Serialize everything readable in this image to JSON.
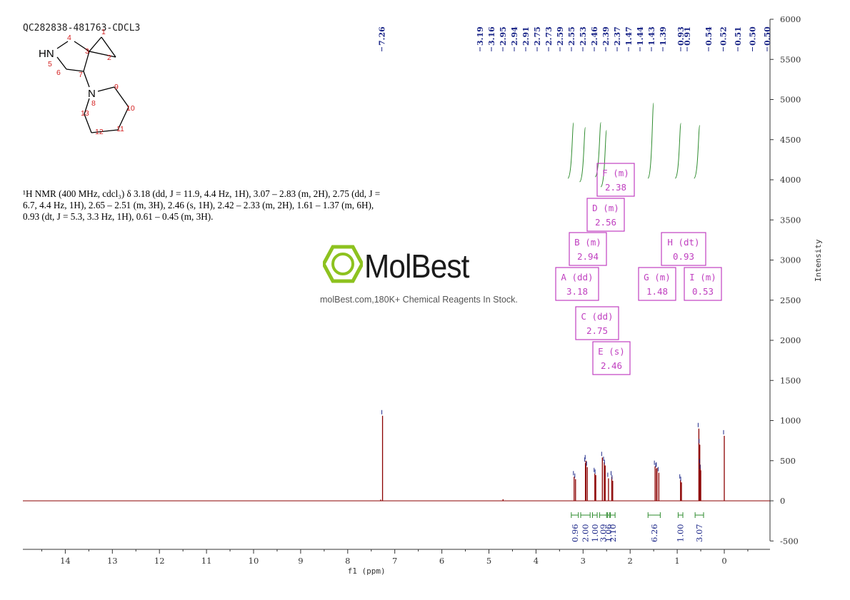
{
  "sample_id": "QC282838-481763-CDCL3",
  "molecule": {
    "atoms": [
      {
        "id": "1",
        "label": "1"
      },
      {
        "id": "2",
        "label": "2"
      },
      {
        "id": "3",
        "label": "3"
      },
      {
        "id": "4",
        "label": "4"
      },
      {
        "id": "5",
        "label": "5"
      },
      {
        "id": "6",
        "label": "6"
      },
      {
        "id": "7",
        "label": "7"
      },
      {
        "id": "8",
        "label": "8"
      },
      {
        "id": "9",
        "label": "9"
      },
      {
        "id": "10",
        "label": "10"
      },
      {
        "id": "11",
        "label": "11"
      },
      {
        "id": "12",
        "label": "12"
      },
      {
        "id": "13",
        "label": "13"
      }
    ],
    "hetero_labels": {
      "nh": "HN",
      "n": "N"
    }
  },
  "nmr_description": {
    "line1": "¹H NMR (400 MHz, cdcl₃) δ 3.18 (dd, J = 11.9, 4.4 Hz, 1H), 3.07 – 2.83 (m, 2H), 2.75 (dd, J =",
    "line2": "6.7, 4.4 Hz, 1H), 2.65 – 2.51 (m, 3H), 2.46 (s, 1H), 2.42 – 2.33 (m, 2H), 1.61 – 1.37 (m, 6H),",
    "line3": "0.93 (dt, J = 5.3, 3.3 Hz, 1H), 0.61 – 0.45 (m, 3H)."
  },
  "watermark": {
    "name": "MolBest",
    "tagline": "molBest.com,180K+ Chemical Reagents In Stock.",
    "accent": "#8dc21f"
  },
  "colors": {
    "spectrum": "#8b0000",
    "peak_labels": "#1f2a8a",
    "integrals": "#2e8b2e",
    "multiplet_boxes": "#c040c0",
    "axis": "#333333"
  },
  "chart_data": {
    "type": "line",
    "xlabel": "f1 (ppm)",
    "ylabel": "Intensity",
    "xlim": [
      15.9,
      -0.9
    ],
    "ylim": [
      -600,
      6000
    ],
    "x_ticks": [
      14,
      13,
      12,
      11,
      10,
      9,
      8,
      7,
      6,
      5,
      4,
      3,
      2,
      1,
      0
    ],
    "y_ticks": [
      6000,
      5500,
      5000,
      4500,
      4000,
      3500,
      3000,
      2500,
      2000,
      1500,
      1000,
      500,
      0,
      -500
    ],
    "peaks": [
      {
        "ppm": 7.26,
        "height": 1060
      },
      {
        "ppm": 3.19,
        "height": 300
      },
      {
        "ppm": 3.16,
        "height": 270
      },
      {
        "ppm": 2.95,
        "height": 470
      },
      {
        "ppm": 2.94,
        "height": 500
      },
      {
        "ppm": 2.91,
        "height": 420
      },
      {
        "ppm": 2.75,
        "height": 340
      },
      {
        "ppm": 2.73,
        "height": 320
      },
      {
        "ppm": 2.59,
        "height": 540
      },
      {
        "ppm": 2.55,
        "height": 480
      },
      {
        "ppm": 2.53,
        "height": 440
      },
      {
        "ppm": 2.46,
        "height": 280
      },
      {
        "ppm": 2.39,
        "height": 300
      },
      {
        "ppm": 2.37,
        "height": 250
      },
      {
        "ppm": 1.47,
        "height": 430
      },
      {
        "ppm": 1.44,
        "height": 400
      },
      {
        "ppm": 1.43,
        "height": 410
      },
      {
        "ppm": 1.39,
        "height": 350
      },
      {
        "ppm": 0.93,
        "height": 260
      },
      {
        "ppm": 0.91,
        "height": 230
      },
      {
        "ppm": 0.54,
        "height": 900
      },
      {
        "ppm": 0.52,
        "height": 700
      },
      {
        "ppm": 0.51,
        "height": 450
      },
      {
        "ppm": 0.5,
        "height": 380
      },
      {
        "ppm": 0.0,
        "height": 810
      },
      {
        "ppm": 4.7,
        "height": 20
      },
      {
        "ppm": 7.3,
        "height": 15
      }
    ],
    "peak_labels": [
      "7.26",
      "3.19",
      "3.16",
      "2.95",
      "2.94",
      "2.91",
      "2.75",
      "2.73",
      "2.59",
      "2.55",
      "2.53",
      "2.46",
      "2.39",
      "2.37",
      "1.47",
      "1.44",
      "1.43",
      "1.39",
      "0.93",
      "0.91",
      "0.54",
      "0.52",
      "0.51",
      "0.50",
      "0.50"
    ],
    "integrals": [
      {
        "from": 3.25,
        "to": 3.1,
        "value": "0.96"
      },
      {
        "from": 3.05,
        "to": 2.85,
        "value": "2.00"
      },
      {
        "from": 2.8,
        "to": 2.7,
        "value": "1.00"
      },
      {
        "from": 2.65,
        "to": 2.5,
        "value": "3.09"
      },
      {
        "from": 2.48,
        "to": 2.44,
        "value": "1.06"
      },
      {
        "from": 2.42,
        "to": 2.32,
        "value": "2.10"
      },
      {
        "from": 1.62,
        "to": 1.36,
        "value": "6.26"
      },
      {
        "from": 0.98,
        "to": 0.88,
        "value": "1.00"
      },
      {
        "from": 0.62,
        "to": 0.44,
        "value": "3.07"
      }
    ],
    "multiplets": [
      {
        "letter": "A",
        "type": "dd",
        "shift": "3.18"
      },
      {
        "letter": "B",
        "type": "m",
        "shift": "2.94"
      },
      {
        "letter": "C",
        "type": "dd",
        "shift": "2.75"
      },
      {
        "letter": "D",
        "type": "m",
        "shift": "2.56"
      },
      {
        "letter": "E",
        "type": "s",
        "shift": "2.46"
      },
      {
        "letter": "F",
        "type": "m",
        "shift": "2.38"
      },
      {
        "letter": "G",
        "type": "m",
        "shift": "1.48"
      },
      {
        "letter": "H",
        "type": "dt",
        "shift": "0.93"
      },
      {
        "letter": "I",
        "type": "m",
        "shift": "0.53"
      }
    ]
  }
}
